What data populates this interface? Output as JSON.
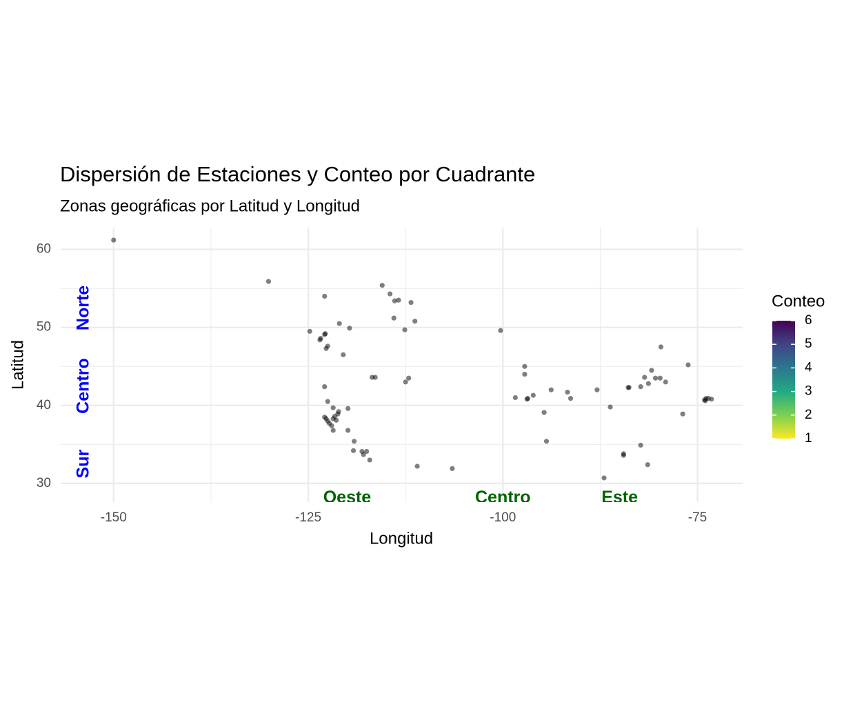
{
  "chart_data": {
    "type": "scatter",
    "title": "Dispersión de Estaciones y Conteo por Cuadrante",
    "subtitle": "Zonas geográficas por Latitud y Longitud",
    "x_label": "Longitud",
    "y_label": "Latitud",
    "xlim": [
      -156.8,
      -69.2
    ],
    "ylim": [
      27.6,
      62.8
    ],
    "xticks": [
      -150,
      -125,
      -100,
      -75
    ],
    "yticks": [
      30,
      40,
      50,
      60
    ],
    "xminor": [
      -137.5,
      -112.5,
      -87.5
    ],
    "yminor": [
      35,
      45,
      55
    ],
    "grid": true,
    "point_color": "#000000",
    "point_opacity": 0.5,
    "x": [
      -150,
      -130.1,
      -115.5,
      -114.5,
      -113.9,
      -113.4,
      -111.8,
      -122.9,
      -114.0,
      -111.3,
      -112.6,
      -121.0,
      -119.7,
      -124.8,
      -122.8,
      -122.9,
      -123.4,
      -123.5,
      -122.5,
      -122.7,
      -120.5,
      -100.3,
      -116.8,
      -116.4,
      -112.1,
      -112.5,
      -122.9,
      -122.5,
      -121.8,
      -119.9,
      -121.1,
      -121.2,
      -122.9,
      -122.7,
      -121.6,
      -121.8,
      -121.4,
      -122.5,
      -122.3,
      -122.0,
      -121.8,
      -119.9,
      -119.1,
      -119.2,
      -118.1,
      -117.9,
      -117.5,
      -117.1,
      -111.0,
      -106.5,
      -97.2,
      -97.2,
      -98.4,
      -96.8,
      -96.9,
      -96.1,
      -93.8,
      -91.7,
      -91.3,
      -94.7,
      -94.4,
      -87.9,
      -86.2,
      -83.9,
      -83.8,
      -82.3,
      -81.8,
      -81.3,
      -80.9,
      -80.4,
      -79.8,
      -79.1,
      -79.7,
      -76.2,
      -76.9,
      -84.5,
      -84.5,
      -82.3,
      -81.4,
      -87.0,
      -74.1,
      -73.9,
      -73.6,
      -73.2,
      -74.0
    ],
    "y": [
      61.2,
      55.9,
      55.4,
      54.3,
      53.4,
      53.5,
      53.2,
      54.0,
      51.2,
      50.8,
      49.7,
      50.5,
      49.9,
      49.5,
      49.2,
      49.1,
      48.6,
      48.4,
      47.6,
      47.3,
      46.5,
      49.6,
      43.6,
      43.6,
      43.5,
      43.0,
      42.4,
      40.5,
      39.7,
      39.6,
      39.2,
      38.9,
      38.5,
      38.3,
      38.6,
      38.3,
      38.1,
      38.0,
      37.7,
      37.4,
      36.8,
      36.8,
      35.4,
      34.2,
      34.1,
      33.7,
      34.1,
      33.0,
      32.2,
      31.9,
      45.0,
      44.0,
      41.0,
      40.9,
      40.8,
      41.3,
      42.0,
      41.7,
      40.9,
      39.1,
      35.4,
      42.0,
      39.8,
      42.3,
      42.3,
      42.4,
      43.6,
      42.8,
      44.5,
      43.5,
      43.5,
      43.0,
      47.5,
      45.2,
      38.9,
      33.8,
      33.6,
      34.9,
      32.4,
      30.7,
      40.7,
      40.9,
      40.9,
      40.8,
      40.6
    ],
    "annotations": [
      {
        "text": "Norte",
        "x": -153.8,
        "y": 52.5,
        "color": "#0000ff",
        "angle": 90
      },
      {
        "text": "Centro",
        "x": -153.8,
        "y": 42.5,
        "color": "#0000ff",
        "angle": 90
      },
      {
        "text": "Sur",
        "x": -153.8,
        "y": 32.5,
        "color": "#0000ff",
        "angle": 90
      },
      {
        "text": "Oeste",
        "x": -120,
        "y": 28.1,
        "color": "#006400",
        "angle": 0
      },
      {
        "text": "Centro",
        "x": -100,
        "y": 28.1,
        "color": "#006400",
        "angle": 0
      },
      {
        "text": "Este",
        "x": -85,
        "y": 28.1,
        "color": "#006400",
        "angle": 0
      }
    ],
    "colorbar": {
      "title": "Conteo",
      "lim": [
        1,
        6
      ],
      "ticks": [
        1,
        2,
        3,
        4,
        5,
        6
      ],
      "colors": [
        "#FDE725",
        "#7AD151",
        "#22A884",
        "#2A788E",
        "#414487",
        "#440154"
      ]
    }
  }
}
